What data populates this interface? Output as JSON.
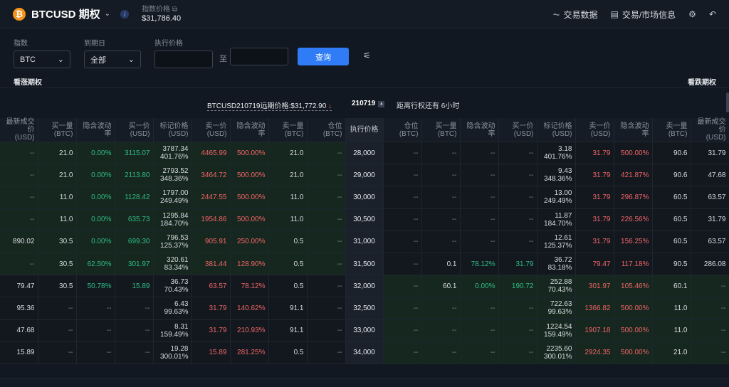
{
  "header": {
    "logo_glyph": "₿",
    "title": "BTCUSD 期权",
    "chevron": "⌄",
    "info_glyph": "i",
    "index_label": "指数价格 ⧉",
    "index_value": "$31,786.40",
    "links": [
      {
        "icon": "⏦",
        "label": "交易数据"
      },
      {
        "icon": "▤",
        "label": "交易/市场信息"
      }
    ],
    "gear": "⚙",
    "back": "↶"
  },
  "filters": {
    "underlying_label": "指数",
    "underlying_value": "BTC",
    "expiry_label": "到期日",
    "expiry_value": "全部",
    "strike_label": "执行价格",
    "to_label": "至",
    "query_label": "查询",
    "settings_icon": "⚟",
    "dropdown_glyph": "⌄"
  },
  "sides": {
    "calls": "看涨期权",
    "puts": "看跌期权"
  },
  "expiry_bar": {
    "label": "BTCUSD210719远期价格:$31,772.90",
    "arrow": "↓",
    "code": "210719",
    "caret": "▲",
    "remaining": "距离行权还有 6小时"
  },
  "columns": {
    "calls": [
      [
        "最新成交价",
        "(USD)"
      ],
      [
        "买一量",
        "(BTC)"
      ],
      [
        "隐含波动率",
        ""
      ],
      [
        "买一价",
        "(USD)"
      ],
      [
        "标记价格",
        "(USD)"
      ],
      [
        "卖一价",
        "(USD)"
      ],
      [
        "隐含波动率",
        ""
      ],
      [
        "卖一量",
        "(BTC)"
      ],
      [
        "仓位",
        "(BTC)"
      ]
    ],
    "strike": "执行价格",
    "puts": [
      [
        "仓位",
        "(BTC)"
      ],
      [
        "买一量",
        "(BTC)"
      ],
      [
        "隐含波动率",
        ""
      ],
      [
        "买一价",
        "(USD)"
      ],
      [
        "标记价格",
        "(USD)"
      ],
      [
        "卖一价",
        "(USD)"
      ],
      [
        "隐含波动率",
        ""
      ],
      [
        "卖一量",
        "(BTC)"
      ],
      [
        "最新成交价",
        "(USD)"
      ]
    ]
  },
  "rows": [
    {
      "itm": "call",
      "strike": "28,000",
      "call": [
        "--",
        "21.0",
        "0.00%",
        "3115.07",
        [
          "3787.34",
          "401.76%"
        ],
        "4465.99",
        "500.00%",
        "21.0",
        "--"
      ],
      "put": [
        "--",
        "--",
        "--",
        "--",
        [
          "3.18",
          "401.76%"
        ],
        "31.79",
        "500.00%",
        "90.6",
        "31.79"
      ]
    },
    {
      "itm": "call",
      "strike": "29,000",
      "call": [
        "--",
        "21.0",
        "0.00%",
        "2113.80",
        [
          "2793.52",
          "348.36%"
        ],
        "3464.72",
        "500.00%",
        "21.0",
        "--"
      ],
      "put": [
        "--",
        "--",
        "--",
        "--",
        [
          "9.43",
          "348.36%"
        ],
        "31.79",
        "421.87%",
        "90.6",
        "47.68"
      ]
    },
    {
      "itm": "call",
      "strike": "30,000",
      "call": [
        "--",
        "11.0",
        "0.00%",
        "1128.42",
        [
          "1797.00",
          "249.49%"
        ],
        "2447.55",
        "500.00%",
        "11.0",
        "--"
      ],
      "put": [
        "--",
        "--",
        "--",
        "--",
        [
          "13.00",
          "249.49%"
        ],
        "31.79",
        "296.87%",
        "60.5",
        "63.57"
      ]
    },
    {
      "itm": "call",
      "strike": "30,500",
      "call": [
        "--",
        "11.0",
        "0.00%",
        "635.73",
        [
          "1295.84",
          "184.70%"
        ],
        "1954.86",
        "500.00%",
        "11.0",
        "--"
      ],
      "put": [
        "--",
        "--",
        "--",
        "--",
        [
          "11.87",
          "184.70%"
        ],
        "31.79",
        "226.56%",
        "60.5",
        "31.79"
      ]
    },
    {
      "itm": "call",
      "strike": "31,000",
      "call": [
        "890.02",
        "30.5",
        "0.00%",
        "699.30",
        [
          "796.53",
          "125.37%"
        ],
        "905.91",
        "250.00%",
        "0.5",
        "--"
      ],
      "put": [
        "--",
        "--",
        "--",
        "--",
        [
          "12.61",
          "125.37%"
        ],
        "31.79",
        "156.25%",
        "60.5",
        "63.57"
      ]
    },
    {
      "itm": "call",
      "strike": "31,500",
      "call": [
        "--",
        "30.5",
        "62.50%",
        "301.97",
        [
          "320.61",
          "83.34%"
        ],
        "381.44",
        "128.90%",
        "0.5",
        "--"
      ],
      "put": [
        "--",
        "0.1",
        "78.12%",
        "31.79",
        [
          "36.72",
          "83.18%"
        ],
        "79.47",
        "117.18%",
        "90.5",
        "286.08"
      ]
    },
    {
      "itm": "put",
      "strike": "32,000",
      "call": [
        "79.47",
        "30.5",
        "50.78%",
        "15.89",
        [
          "36.73",
          "70.43%"
        ],
        "63.57",
        "78.12%",
        "0.5",
        "--"
      ],
      "put": [
        "--",
        "60.1",
        "0.00%",
        "190.72",
        [
          "252.88",
          "70.43%"
        ],
        "301.97",
        "105.46%",
        "60.1",
        "--"
      ]
    },
    {
      "itm": "put",
      "strike": "32,500",
      "call": [
        "95.36",
        "--",
        "--",
        "--",
        [
          "6.43",
          "99.63%"
        ],
        "31.79",
        "140.62%",
        "91.1",
        "--"
      ],
      "put": [
        "--",
        "--",
        "--",
        "--",
        [
          "722.63",
          "99.63%"
        ],
        "1366.82",
        "500.00%",
        "11.0",
        "--"
      ]
    },
    {
      "itm": "put",
      "strike": "33,000",
      "call": [
        "47.68",
        "--",
        "--",
        "--",
        [
          "8.31",
          "159.49%"
        ],
        "31.79",
        "210.93%",
        "91.1",
        "--"
      ],
      "put": [
        "--",
        "--",
        "--",
        "--",
        [
          "1224.54",
          "159.49%"
        ],
        "1907.18",
        "500.00%",
        "11.0",
        "--"
      ]
    },
    {
      "itm": "put",
      "strike": "34,000",
      "call": [
        "15.89",
        "--",
        "--",
        "--",
        [
          "19.28",
          "300.01%"
        ],
        "15.89",
        "281.25%",
        "0.5",
        "--"
      ],
      "put": [
        "--",
        "--",
        "--",
        "--",
        [
          "2235.60",
          "300.01%"
        ],
        "2924.35",
        "500.00%",
        "21.0",
        "--"
      ]
    }
  ],
  "colors": {
    "green": "#2ebd85",
    "red": "#f06565",
    "accent": "#2f7cf6",
    "itm_bg": "#16271f"
  }
}
